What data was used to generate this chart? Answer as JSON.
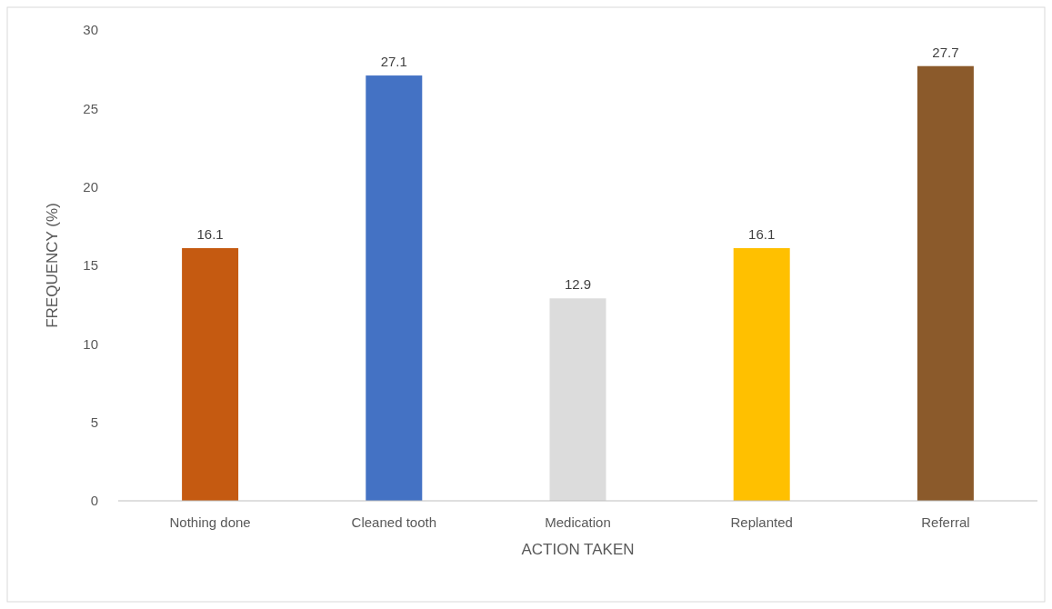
{
  "chart_data": {
    "type": "bar",
    "xlabel": "ACTION TAKEN",
    "ylabel": "FREQUENCY (%)",
    "categories": [
      "Nothing done",
      "Cleaned tooth",
      "Medication",
      "Replanted",
      "Referral"
    ],
    "values": [
      16.1,
      27.1,
      12.9,
      16.1,
      27.7
    ],
    "colors": [
      "#c55a11",
      "#4472c4",
      "#dcdcdc",
      "#ffc000",
      "#8b5a2b"
    ],
    "ylim": [
      0,
      30
    ],
    "yticks": [
      0,
      5,
      10,
      15,
      20,
      25,
      30
    ],
    "grid": false,
    "data_labels": true
  }
}
